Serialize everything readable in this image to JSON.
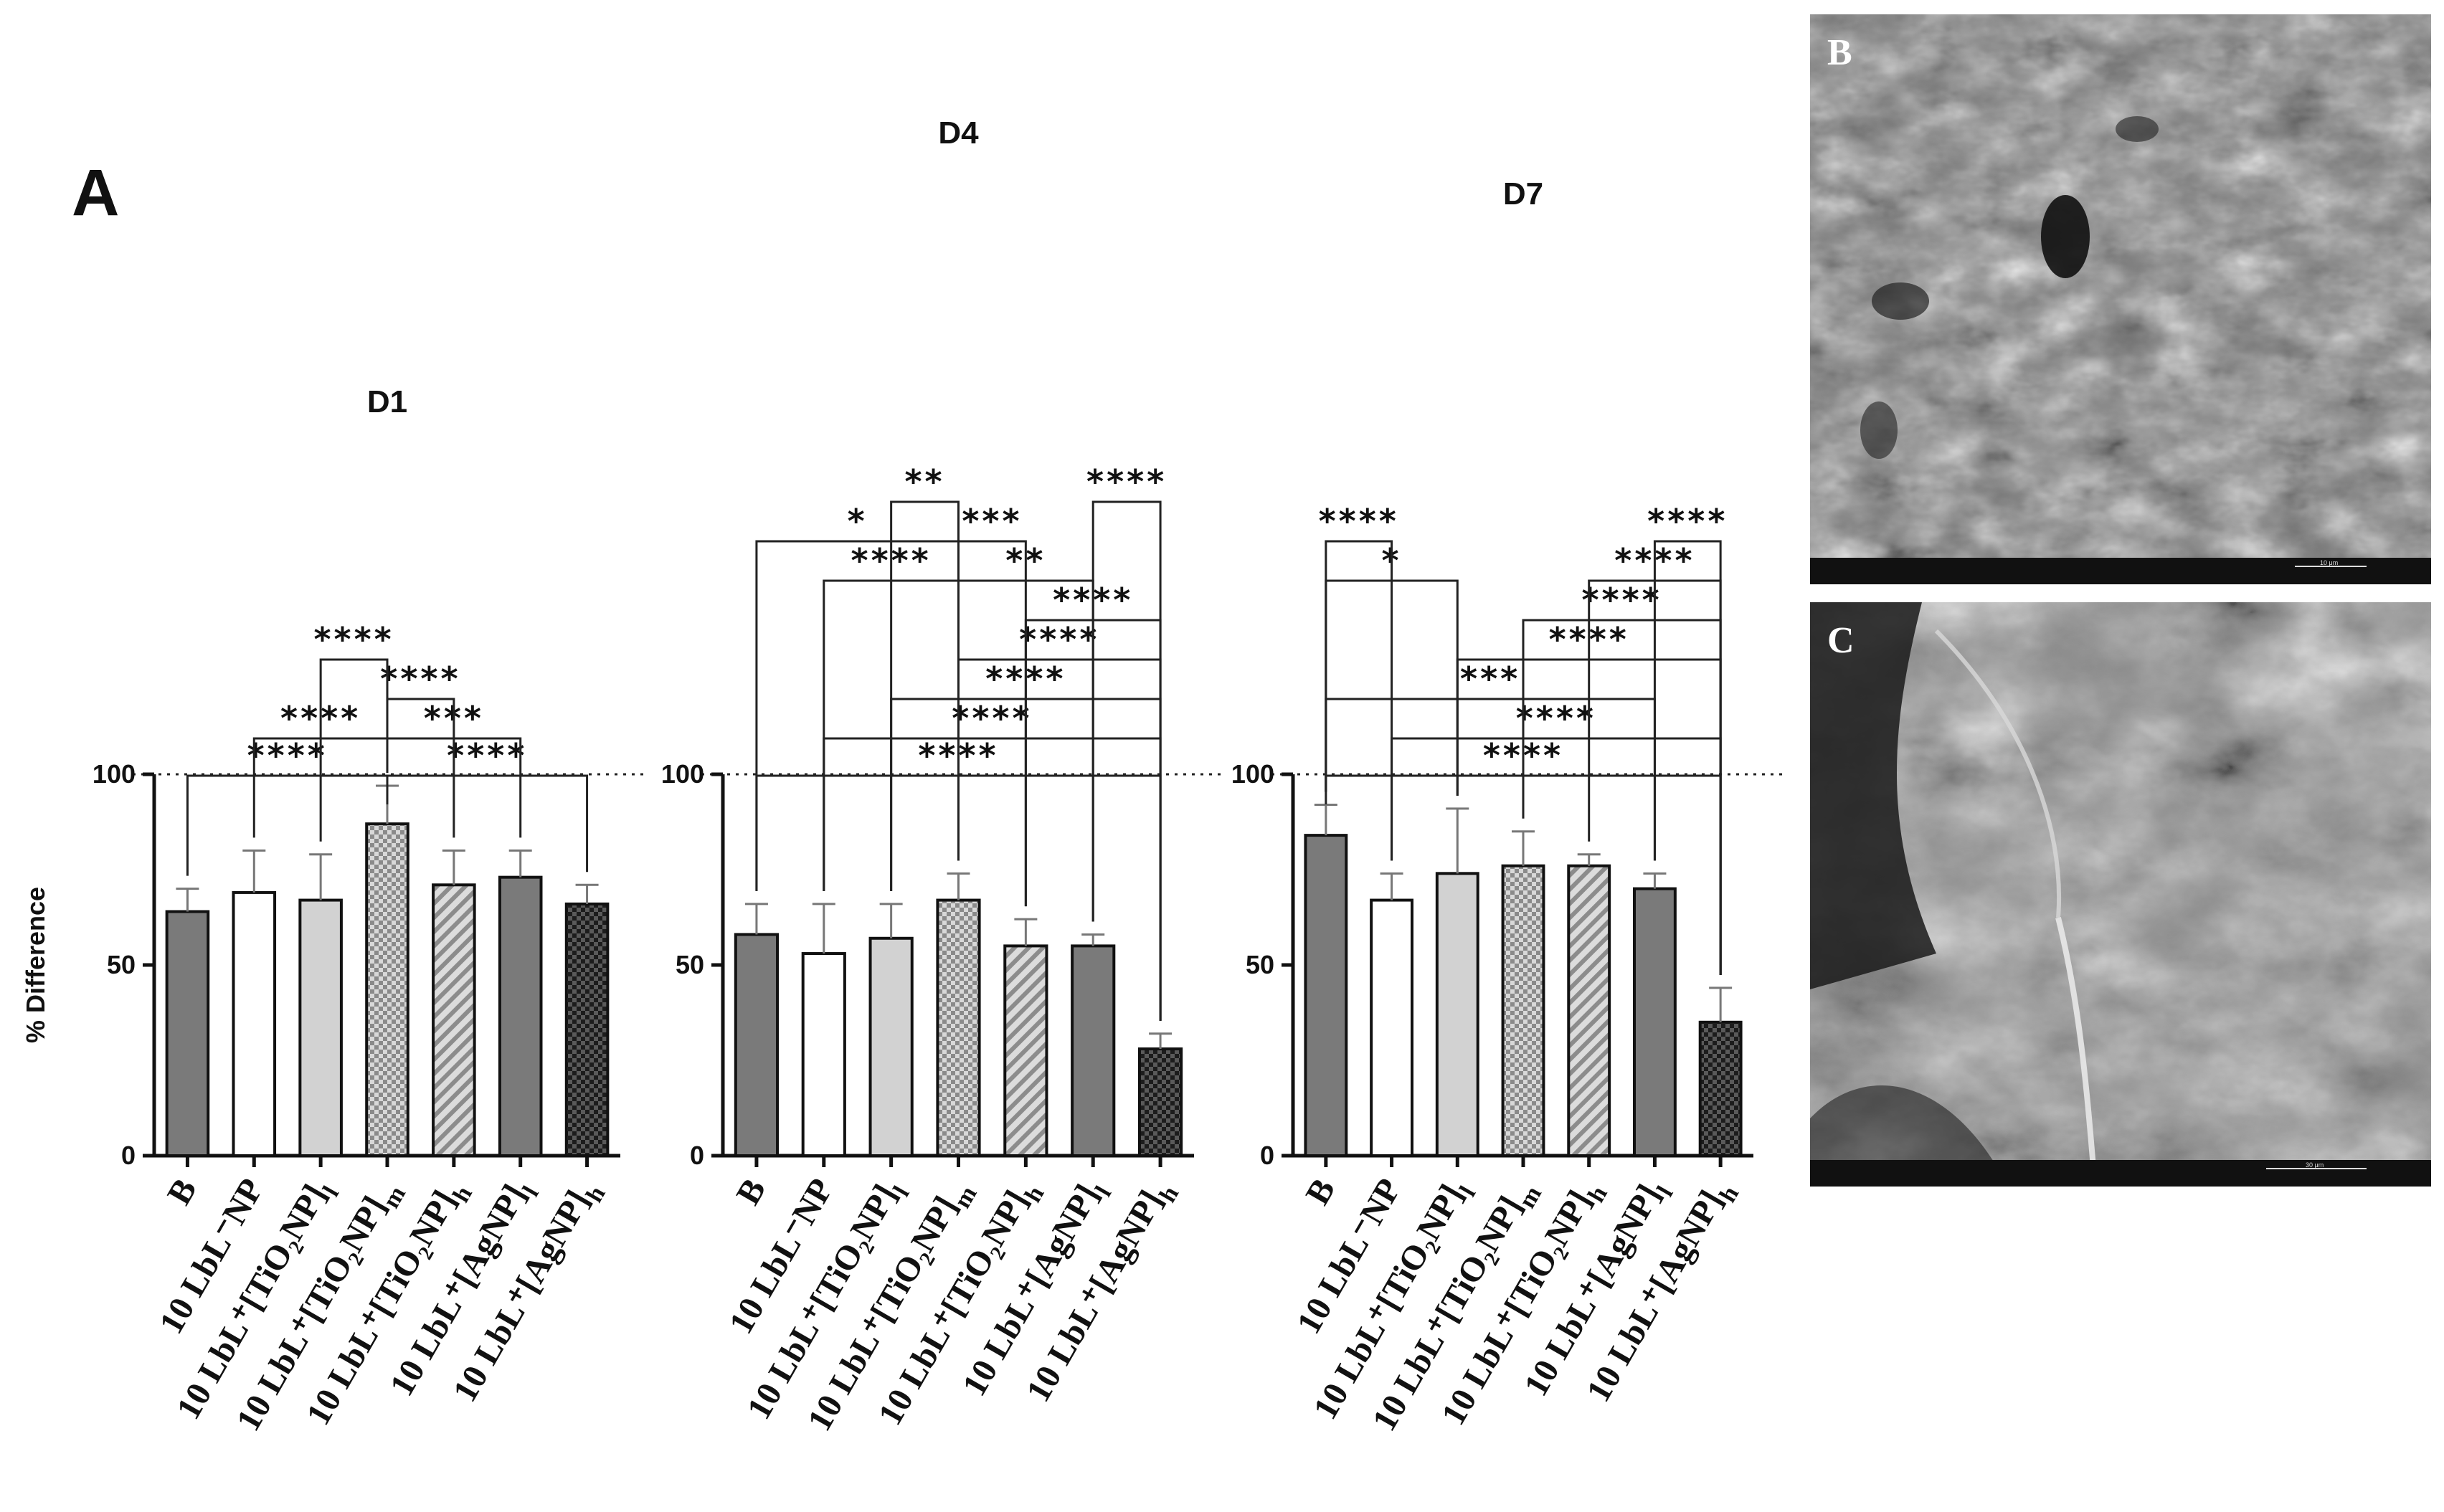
{
  "figure": {
    "panel_a_label": "A",
    "sem_images": [
      {
        "label": "B",
        "scale_text": "10 μm"
      },
      {
        "label": "C",
        "scale_text": "30 μm"
      }
    ]
  },
  "chart_data": [
    {
      "type": "bar",
      "title": "D1",
      "ylabel": "% Difference",
      "xlabel": "",
      "ylim": [
        0,
        100
      ],
      "yticks": [
        0,
        50,
        100
      ],
      "reference_line": 100,
      "categories": [
        {
          "base": "B",
          "sub": ""
        },
        {
          "base": "10 LbL⁻NP",
          "sub": ""
        },
        {
          "base": "10 LbL⁺[TiO₂NP]",
          "sub": "l"
        },
        {
          "base": "10 LbL⁺[TiO₂NP]",
          "sub": "m"
        },
        {
          "base": "10 LbL⁺[TiO₂NP]",
          "sub": "h"
        },
        {
          "base": "10 LbL⁺[AgNP]",
          "sub": "l"
        },
        {
          "base": "10 LbL⁺[AgNP]",
          "sub": "h"
        }
      ],
      "values": [
        64,
        69,
        67,
        87,
        71,
        73,
        66
      ],
      "errors": [
        6,
        11,
        12,
        10,
        9,
        7,
        5
      ],
      "patterns": [
        "dark",
        "white",
        "light",
        "checker",
        "hatch",
        "dark",
        "darkcheck"
      ],
      "significance": [
        {
          "from": 0,
          "to": 3,
          "label": "****",
          "level": 1
        },
        {
          "from": 3,
          "to": 6,
          "label": "****",
          "level": 1
        },
        {
          "from": 1,
          "to": 3,
          "label": "****",
          "level": 2
        },
        {
          "from": 3,
          "to": 5,
          "label": "***",
          "level": 2
        },
        {
          "from": 3,
          "to": 4,
          "label": "****",
          "level": 3
        },
        {
          "from": 2,
          "to": 3,
          "label": "****",
          "level": 4
        }
      ]
    },
    {
      "type": "bar",
      "title": "D4",
      "ylabel": "",
      "xlabel": "",
      "ylim": [
        0,
        100
      ],
      "yticks": [
        0,
        50,
        100
      ],
      "reference_line": 100,
      "categories": [
        {
          "base": "B",
          "sub": ""
        },
        {
          "base": "10 LbL⁻NP",
          "sub": ""
        },
        {
          "base": "10 LbL⁺[TiO₂NP]",
          "sub": "l"
        },
        {
          "base": "10 LbL⁺[TiO₂NP]",
          "sub": "m"
        },
        {
          "base": "10 LbL⁺[TiO₂NP]",
          "sub": "h"
        },
        {
          "base": "10 LbL⁺[AgNP]",
          "sub": "l"
        },
        {
          "base": "10 LbL⁺[AgNP]",
          "sub": "h"
        }
      ],
      "values": [
        58,
        53,
        57,
        67,
        55,
        55,
        28
      ],
      "errors": [
        8,
        13,
        9,
        7,
        7,
        3,
        4
      ],
      "patterns": [
        "dark",
        "white",
        "light",
        "checker",
        "hatch",
        "dark",
        "darkcheck"
      ],
      "significance": [
        {
          "from": 0,
          "to": 6,
          "label": "****",
          "level": 1
        },
        {
          "from": 1,
          "to": 6,
          "label": "****",
          "level": 2
        },
        {
          "from": 2,
          "to": 6,
          "label": "****",
          "level": 3
        },
        {
          "from": 3,
          "to": 6,
          "label": "****",
          "level": 4
        },
        {
          "from": 4,
          "to": 6,
          "label": "****",
          "level": 5
        },
        {
          "from": 1,
          "to": 3,
          "label": "****",
          "level": 6
        },
        {
          "from": 3,
          "to": 5,
          "label": "**",
          "level": 6
        },
        {
          "from": 0,
          "to": 3,
          "label": "*",
          "level": 7
        },
        {
          "from": 3,
          "to": 4,
          "label": "***",
          "level": 7
        },
        {
          "from": 2,
          "to": 3,
          "label": "**",
          "level": 8
        },
        {
          "from": 5,
          "to": 6,
          "label": "****",
          "level": 8
        }
      ]
    },
    {
      "type": "bar",
      "title": "D7",
      "ylabel": "",
      "xlabel": "",
      "ylim": [
        0,
        100
      ],
      "yticks": [
        0,
        50,
        100
      ],
      "reference_line": 100,
      "categories": [
        {
          "base": "B",
          "sub": ""
        },
        {
          "base": "10 LbL⁻NP",
          "sub": ""
        },
        {
          "base": "10 LbL⁺[TiO₂NP]",
          "sub": "l"
        },
        {
          "base": "10 LbL⁺[TiO₂NP]",
          "sub": "m"
        },
        {
          "base": "10 LbL⁺[TiO₂NP]",
          "sub": "h"
        },
        {
          "base": "10 LbL⁺[AgNP]",
          "sub": "l"
        },
        {
          "base": "10 LbL⁺[AgNP]",
          "sub": "h"
        }
      ],
      "values": [
        84,
        67,
        74,
        76,
        76,
        70,
        35
      ],
      "errors": [
        8,
        7,
        17,
        9,
        3,
        4,
        9
      ],
      "patterns": [
        "dark",
        "white",
        "light",
        "checker",
        "hatch",
        "dark",
        "darkcheck"
      ],
      "significance": [
        {
          "from": 0,
          "to": 6,
          "label": "****",
          "level": 1
        },
        {
          "from": 1,
          "to": 6,
          "label": "****",
          "level": 2
        },
        {
          "from": 0,
          "to": 5,
          "label": "***",
          "level": 3
        },
        {
          "from": 2,
          "to": 6,
          "label": "****",
          "level": 4
        },
        {
          "from": 3,
          "to": 6,
          "label": "****",
          "level": 5
        },
        {
          "from": 0,
          "to": 2,
          "label": "*",
          "level": 6
        },
        {
          "from": 4,
          "to": 6,
          "label": "****",
          "level": 6
        },
        {
          "from": 0,
          "to": 1,
          "label": "****",
          "level": 7
        },
        {
          "from": 5,
          "to": 6,
          "label": "****",
          "level": 7
        }
      ]
    }
  ]
}
